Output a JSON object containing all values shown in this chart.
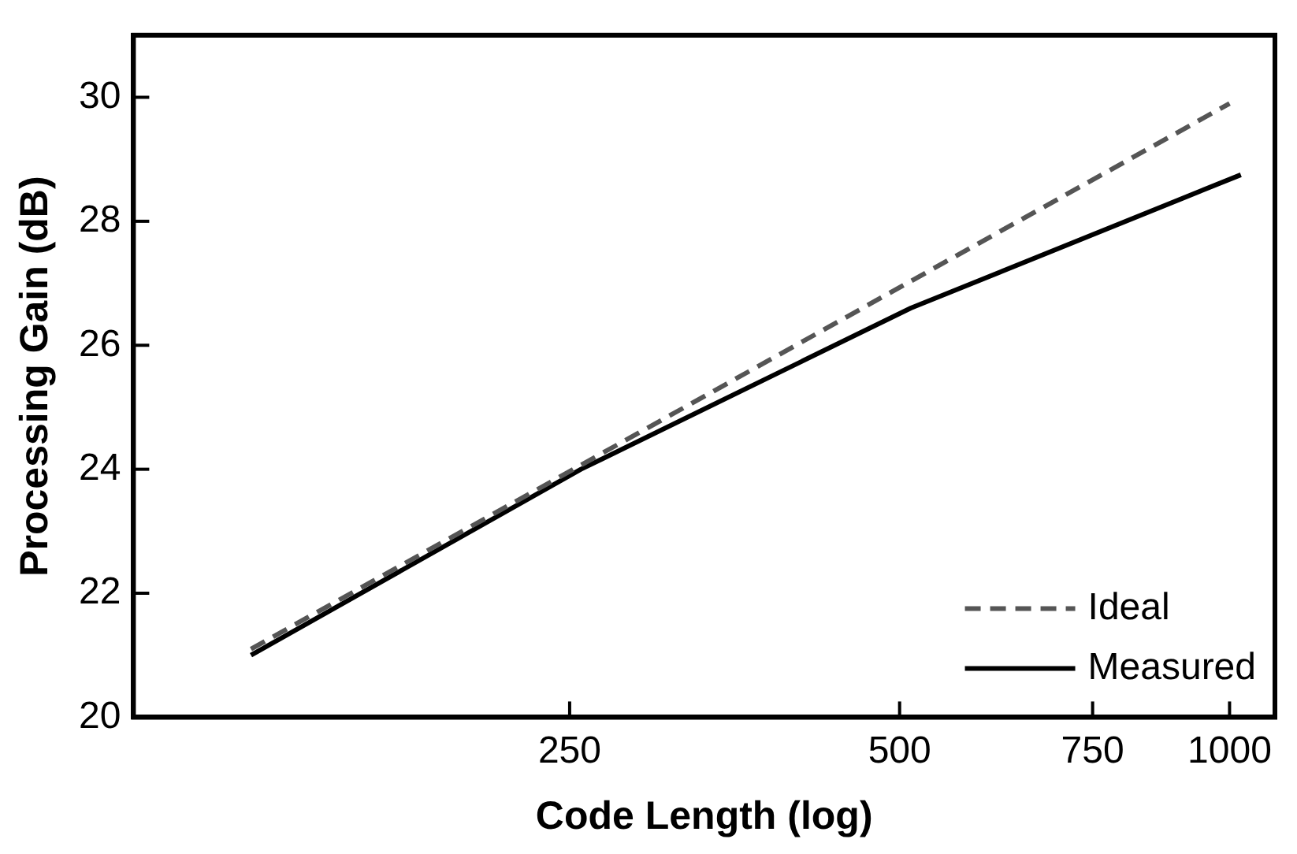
{
  "chart_data": {
    "type": "line",
    "xlabel": "Code Length (log)",
    "ylabel": "Processing Gain (dB)",
    "log": "x",
    "xlim": [
      100,
      1100
    ],
    "xticks": [
      250,
      500,
      750,
      1000
    ],
    "ylim": [
      20,
      31
    ],
    "yticks": [
      20,
      22,
      24,
      26,
      28,
      30
    ],
    "grid": false,
    "legend": "bottom right",
    "marker": "none",
    "series": [
      {
        "name": "Ideal",
        "color": "#555555",
        "line_style": "dashed",
        "x": [
          128,
          1000
        ],
        "values": [
          21.1,
          29.9
        ]
      },
      {
        "name": "Measured",
        "color": "#000000",
        "line_style": "solid",
        "x": [
          128,
          256,
          512,
          1024
        ],
        "values": [
          21.0,
          24.0,
          26.6,
          28.75
        ]
      }
    ]
  }
}
